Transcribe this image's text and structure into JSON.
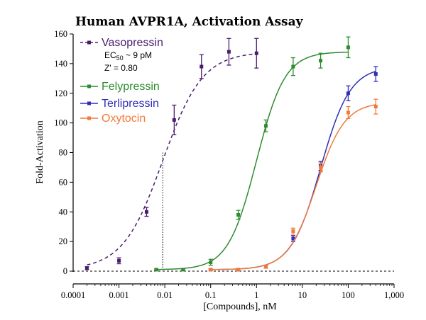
{
  "chart_data": {
    "type": "scatter",
    "title": "Human AVPR1A, Activation Assay",
    "xlabel": "[Compounds], nM",
    "ylabel": "Fold-Activation",
    "xscale": "log",
    "xlim": [
      0.0001,
      1000
    ],
    "ylim": [
      0,
      160
    ],
    "x_ticks": [
      "0.0001",
      "0.001",
      "0.01",
      "0.1",
      "1",
      "10",
      "100",
      "1,000"
    ],
    "y_ticks": [
      "0",
      "20",
      "40",
      "60",
      "80",
      "100",
      "120",
      "140",
      "160"
    ],
    "legend_position": "top-left",
    "annotations": {
      "ec50_prefix": "EC",
      "ec50_sub": "50",
      "ec50_suffix": " ~ 9 pM",
      "zprime": "Z' = 0.80"
    },
    "vertical_reference_x": 0.009,
    "horizontal_reference_y": 0,
    "series": [
      {
        "name": "Vasopressin",
        "color": "#4b1c6e",
        "style": "dashed",
        "fit": {
          "bottom": 1,
          "top": 148,
          "ec50": 0.009,
          "hill": 1.0
        },
        "points": [
          {
            "x": 0.0002,
            "y": 2,
            "err": 1
          },
          {
            "x": 0.001,
            "y": 7,
            "err": 2
          },
          {
            "x": 0.004,
            "y": 40,
            "err": 3
          },
          {
            "x": 0.016,
            "y": 102,
            "err": 10
          },
          {
            "x": 0.063,
            "y": 138,
            "err": 8
          },
          {
            "x": 0.25,
            "y": 148,
            "err": 9
          },
          {
            "x": 1.0,
            "y": 147,
            "err": 10
          }
        ]
      },
      {
        "name": "Felypressin",
        "color": "#2e8b2e",
        "style": "solid",
        "fit": {
          "bottom": 1,
          "top": 148,
          "ec50": 1.0,
          "hill": 1.4
        },
        "points": [
          {
            "x": 0.0065,
            "y": 1,
            "err": 0.5
          },
          {
            "x": 0.025,
            "y": 1,
            "err": 0.5
          },
          {
            "x": 0.1,
            "y": 6,
            "err": 2
          },
          {
            "x": 0.4,
            "y": 38,
            "err": 3
          },
          {
            "x": 1.6,
            "y": 98,
            "err": 4
          },
          {
            "x": 6.3,
            "y": 138,
            "err": 6
          },
          {
            "x": 25,
            "y": 142,
            "err": 5
          },
          {
            "x": 100,
            "y": 151,
            "err": 7
          }
        ]
      },
      {
        "name": "Terlipressin",
        "color": "#2e2eb8",
        "style": "solid",
        "fit": {
          "bottom": 1,
          "top": 138,
          "ec50": 25,
          "hill": 1.35
        },
        "points": [
          {
            "x": 0.1,
            "y": 1,
            "err": 0.5
          },
          {
            "x": 0.4,
            "y": 1,
            "err": 0.5
          },
          {
            "x": 1.6,
            "y": 3,
            "err": 1
          },
          {
            "x": 6.3,
            "y": 22,
            "err": 2
          },
          {
            "x": 25,
            "y": 71,
            "err": 3
          },
          {
            "x": 100,
            "y": 120,
            "err": 5
          },
          {
            "x": 400,
            "y": 133,
            "err": 5
          }
        ]
      },
      {
        "name": "Oxytocin",
        "color": "#f07a3a",
        "style": "solid",
        "fit": {
          "bottom": 1,
          "top": 114,
          "ec50": 20,
          "hill": 1.4
        },
        "points": [
          {
            "x": 0.1,
            "y": 1,
            "err": 0.5
          },
          {
            "x": 0.4,
            "y": 1,
            "err": 0.5
          },
          {
            "x": 1.6,
            "y": 3,
            "err": 1
          },
          {
            "x": 6.3,
            "y": 27,
            "err": 2
          },
          {
            "x": 25,
            "y": 70,
            "err": 3
          },
          {
            "x": 100,
            "y": 107,
            "err": 4
          },
          {
            "x": 400,
            "y": 111,
            "err": 5
          }
        ]
      }
    ]
  }
}
